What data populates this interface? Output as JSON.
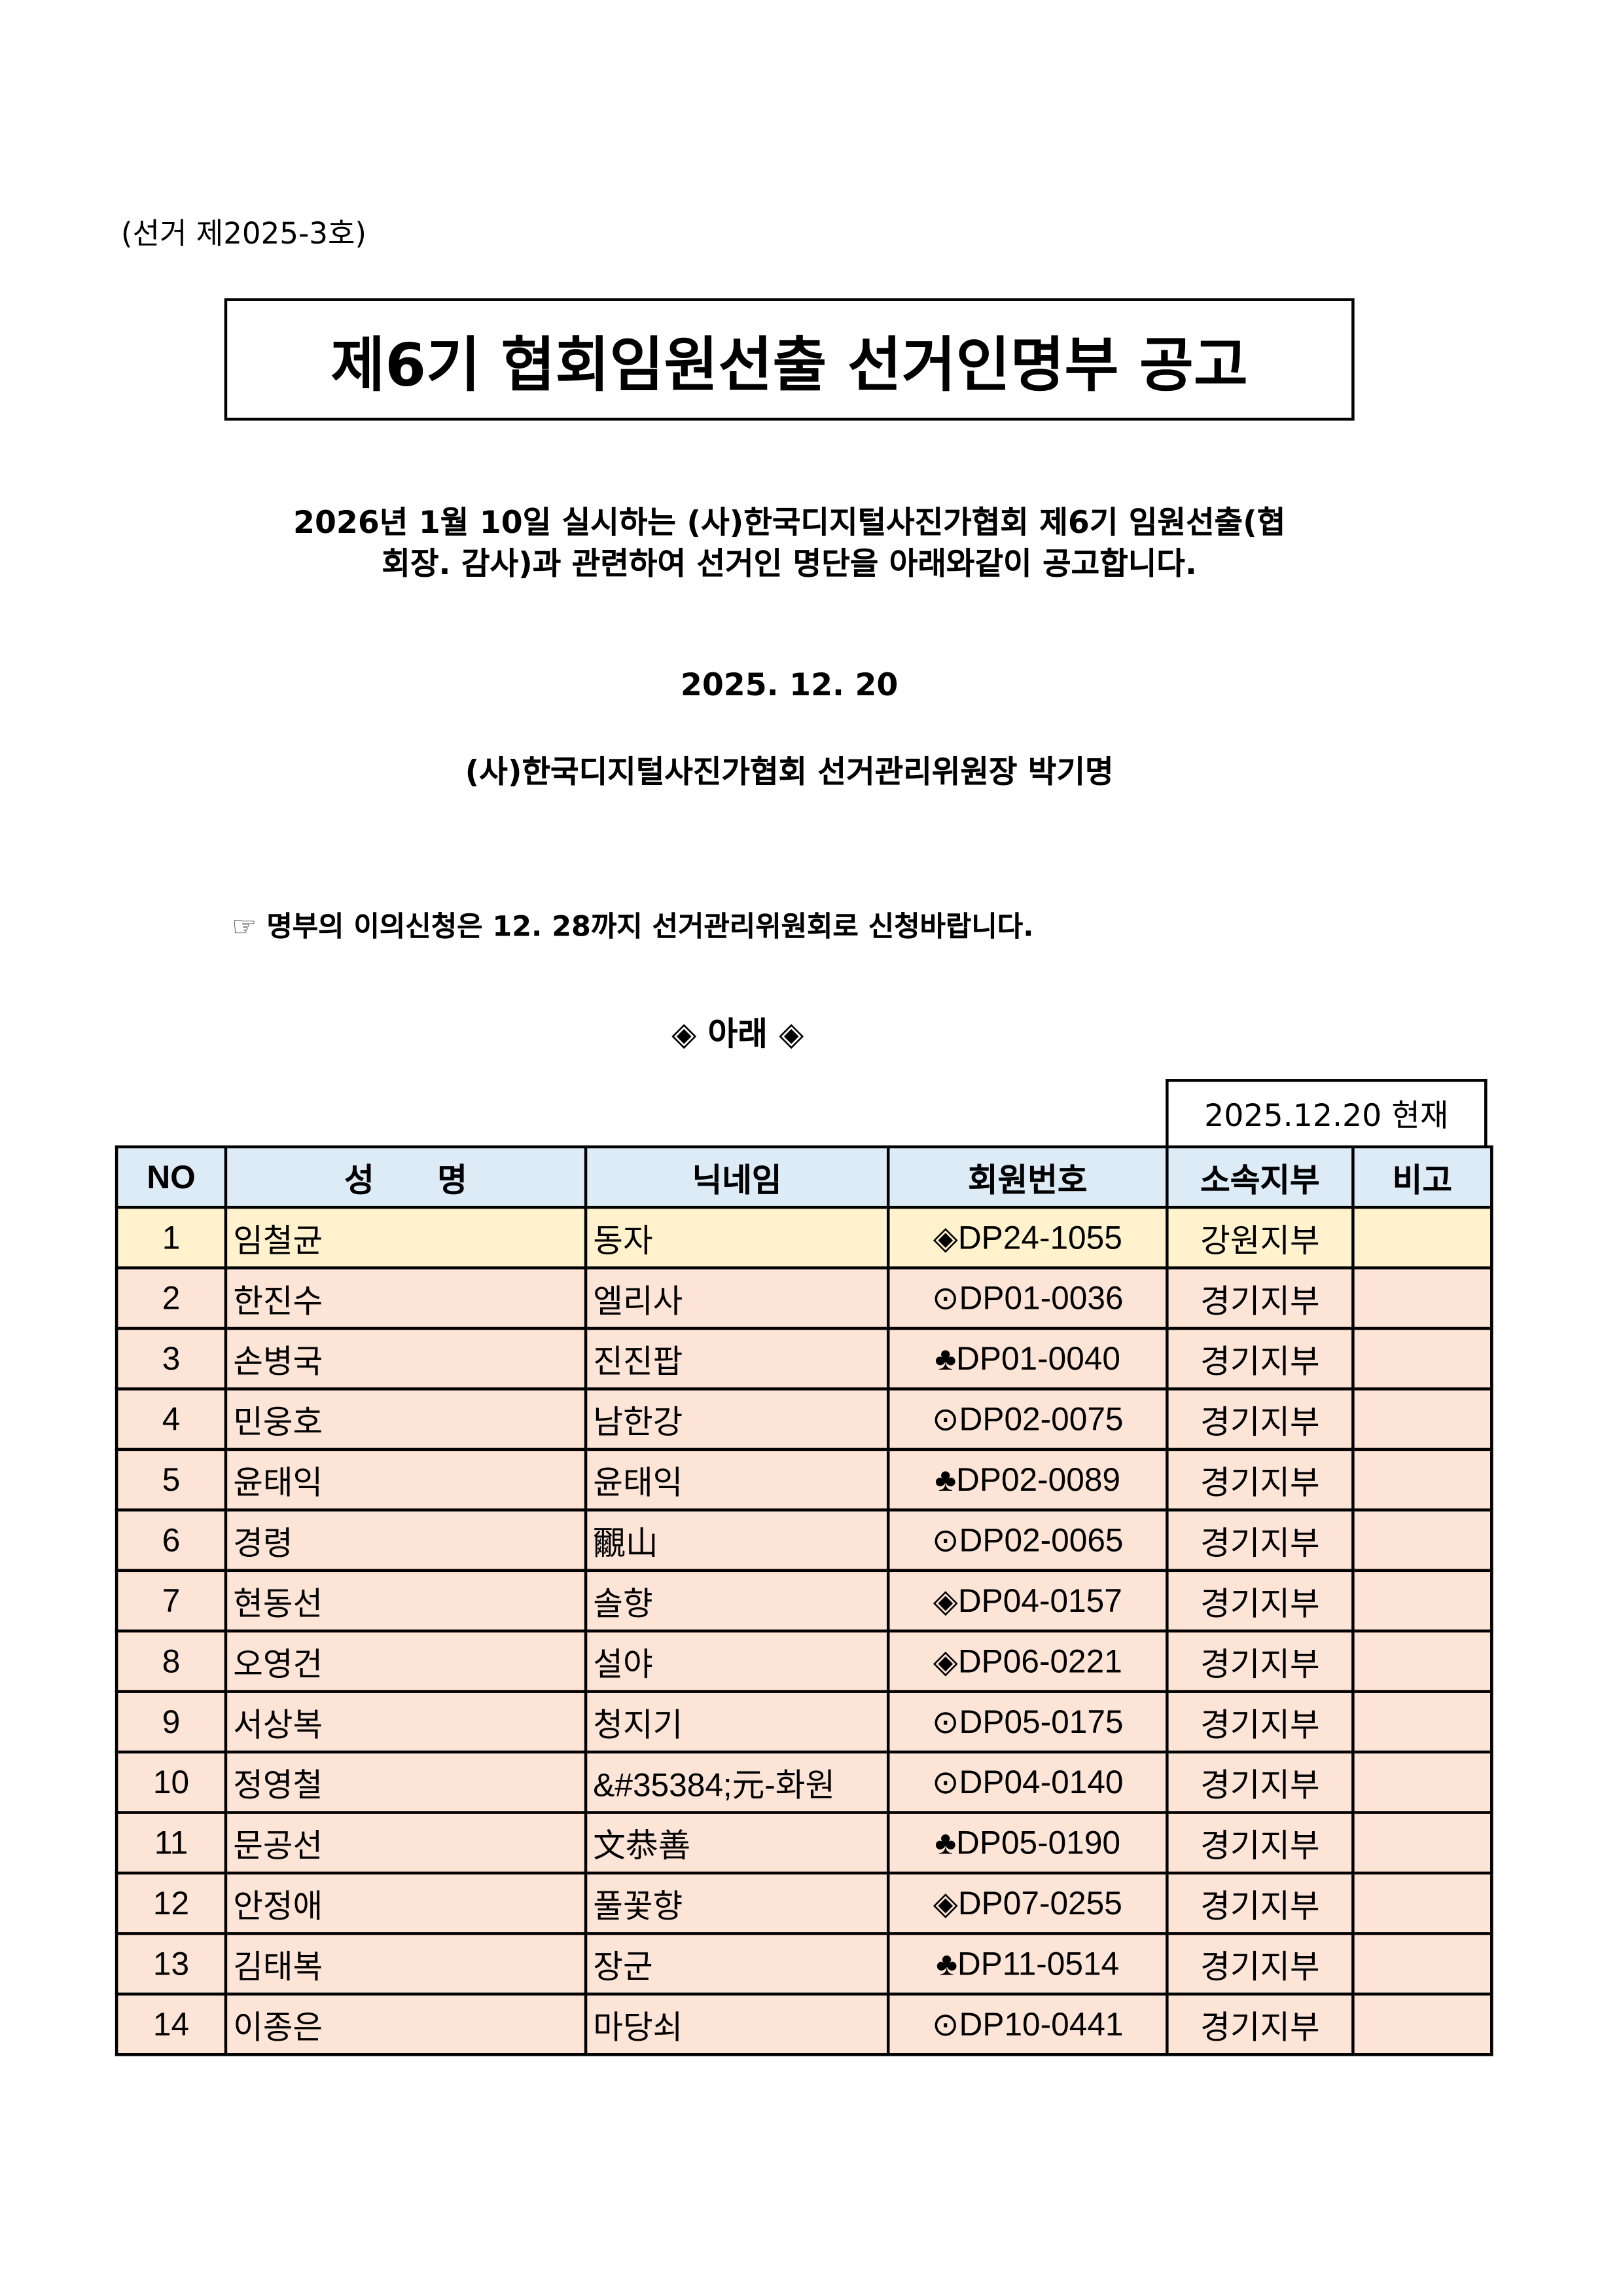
{
  "doc_number": "(선거 제2025-3호)",
  "title": "제6기 협회임원선출 선거인명부 공고",
  "intro_line1": "2026년 1월 10일 실시하는 (사)한국디지털사진가협회 제6기 임원선출(협",
  "intro_line2": "회장. 감사)과 관련하여 선거인 명단을 아래와같이 공고합니다.",
  "date": "2025. 12. 20",
  "signer": "(사)한국디지털사진가협회 선거관리위원장 박기명",
  "note_icon": "☞",
  "note": "명부의 이의신청은 12. 28까지 선거관리위원회로 신청바랍니다.",
  "below_heading": "◈ 아래 ◈",
  "as_of": "2025.12.20 현재",
  "colors": {
    "header": "#DDEBF7",
    "first_row": "#FFF2CC",
    "rows": "#FCE4D6"
  },
  "table": {
    "headers": [
      "NO",
      "성       명",
      "닉네임",
      "회원번호",
      "소속지부",
      "비고"
    ],
    "rows": [
      [
        "1",
        "임철균",
        "동자",
        "◈DP24-1055",
        "강원지부",
        ""
      ],
      [
        "2",
        "한진수",
        "엘리사",
        "⊙DP01-0036",
        "경기지부",
        ""
      ],
      [
        "3",
        "손병국",
        "진진팝",
        "♣DP01-0040",
        "경기지부",
        ""
      ],
      [
        "4",
        "민웅호",
        "남한강",
        "⊙DP02-0075",
        "경기지부",
        ""
      ],
      [
        "5",
        "윤태익",
        "윤태익",
        "♣DP02-0089",
        "경기지부",
        ""
      ],
      [
        "6",
        "경령",
        "覼山",
        "⊙DP02-0065",
        "경기지부",
        ""
      ],
      [
        "7",
        "현동선",
        "솔향",
        "◈DP04-0157",
        "경기지부",
        ""
      ],
      [
        "8",
        "오영건",
        "설야",
        "◈DP06-0221",
        "경기지부",
        ""
      ],
      [
        "9",
        "서상복",
        "청지기",
        "⊙DP05-0175",
        "경기지부",
        ""
      ],
      [
        "10",
        "정영철",
        "&#35384;元-화원",
        "⊙DP04-0140",
        "경기지부",
        ""
      ],
      [
        "11",
        "문공선",
        "文恭善",
        "♣DP05-0190",
        "경기지부",
        ""
      ],
      [
        "12",
        "안정애",
        "풀꽃향",
        "◈DP07-0255",
        "경기지부",
        ""
      ],
      [
        "13",
        "김태복",
        "장군",
        "♣DP11-0514",
        "경기지부",
        ""
      ],
      [
        "14",
        "이종은",
        "마당쇠",
        "⊙DP10-0441",
        "경기지부",
        ""
      ]
    ]
  }
}
